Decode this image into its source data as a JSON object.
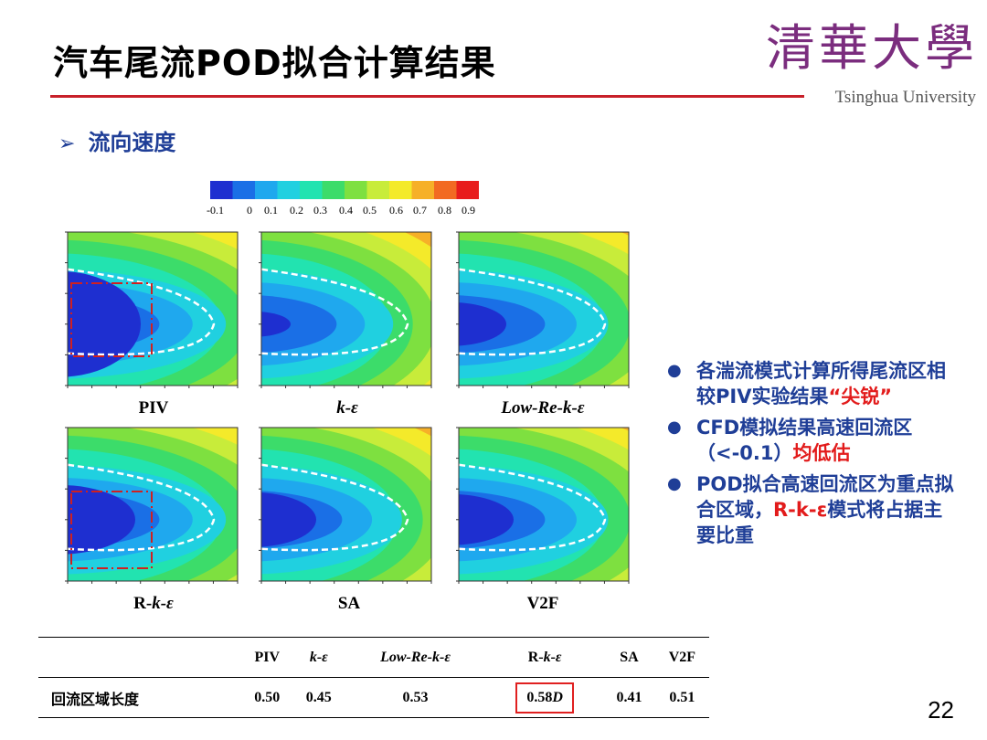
{
  "header": {
    "title": "汽车尾流POD拟合计算结果",
    "logo_cn": "清華大學",
    "logo_en": "Tsinghua University"
  },
  "section": {
    "arrow": "➢",
    "title": "流向速度"
  },
  "colorbar": {
    "ticks": [
      "-0.1",
      "0",
      "0.1",
      "0.2",
      "0.3",
      "0.4",
      "0.5",
      "0.6",
      "0.7",
      "0.8",
      "0.9"
    ],
    "colors": [
      "#1e2fd0",
      "#1a6fe6",
      "#1fa8ee",
      "#20d0e0",
      "#22e3b0",
      "#3cdc6a",
      "#7ee040",
      "#c8ec3a",
      "#f4ea2a",
      "#f6b028",
      "#f26a22",
      "#e81c1c"
    ]
  },
  "plots": [
    {
      "label_parts": [
        {
          "t": "PIV",
          "i": false
        }
      ],
      "shape": "piv"
    },
    {
      "label_parts": [
        {
          "t": "k-ε",
          "i": true
        }
      ],
      "shape": "ke"
    },
    {
      "label_parts": [
        {
          "t": "Low-Re-k-ε",
          "i": true
        }
      ],
      "shape": "lowre"
    },
    {
      "label_parts": [
        {
          "t": "R-",
          "i": false
        },
        {
          "t": "k-ε",
          "i": true
        }
      ],
      "shape": "rke"
    },
    {
      "label_parts": [
        {
          "t": "SA",
          "i": false
        }
      ],
      "shape": "sa"
    },
    {
      "label_parts": [
        {
          "t": "V2F",
          "i": false
        }
      ],
      "shape": "v2f"
    }
  ],
  "bullets": [
    {
      "parts": [
        {
          "t": "各湍流模式计算所得尾流区相较PIV实验结果",
          "red": false
        },
        {
          "t": "“尖锐”",
          "red": true
        }
      ]
    },
    {
      "parts": [
        {
          "t": "CFD模拟结果高速回流区（<-0.1）",
          "red": false
        },
        {
          "t": "均低估",
          "red": true
        }
      ]
    },
    {
      "parts": [
        {
          "t": "POD拟合高速回流区为重点拟合区域，",
          "red": false
        },
        {
          "t": "R-k-ε",
          "red": true
        },
        {
          "t": "模式将占据主要比重",
          "red": false
        }
      ]
    }
  ],
  "table": {
    "headers": [
      "",
      "PIV",
      "k-ε",
      "Low-Re-k-ε",
      "R-k-ε",
      "SA",
      "V2F"
    ],
    "row_label": "回流区域长度",
    "values": [
      "0.50",
      "0.45",
      "0.53",
      "0.58D",
      "0.41",
      "0.51"
    ],
    "highlight_index": 3
  },
  "page_number": "22"
}
